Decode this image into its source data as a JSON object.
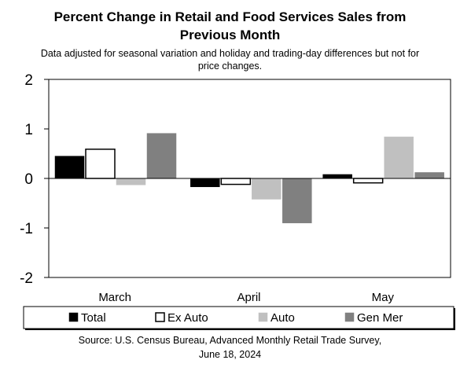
{
  "chart_data": {
    "type": "bar",
    "title": [
      "Percent Change in Retail and Food Services Sales from",
      "Previous Month"
    ],
    "subtitle": [
      "Data adjusted for seasonal variation and holiday and trading-day differences but not for",
      "price changes."
    ],
    "categories": [
      "March",
      "April",
      "May"
    ],
    "series": [
      {
        "name": "Total",
        "values": [
          0.45,
          -0.17,
          0.08
        ],
        "fill": "#000000",
        "stroke": "#000000"
      },
      {
        "name": "Ex Auto",
        "values": [
          0.59,
          -0.12,
          -0.09
        ],
        "fill": "#ffffff",
        "stroke": "#000000"
      },
      {
        "name": "Auto",
        "values": [
          -0.13,
          -0.42,
          0.84
        ],
        "fill": "#c0c0c0",
        "stroke": "#c0c0c0"
      },
      {
        "name": "Gen Mer",
        "values": [
          0.91,
          -0.9,
          0.12
        ],
        "fill": "#808080",
        "stroke": "#808080"
      }
    ],
    "yticks": [
      "2",
      "1",
      "0",
      "-1",
      "-2"
    ],
    "ylim": [
      -2,
      2
    ],
    "xlabel": "",
    "ylabel": "",
    "grid": false,
    "legend_position": "bottom",
    "source": [
      "Source: U.S. Census Bureau, Advanced Monthly Retail Trade Survey,",
      "June 18, 2024"
    ]
  }
}
